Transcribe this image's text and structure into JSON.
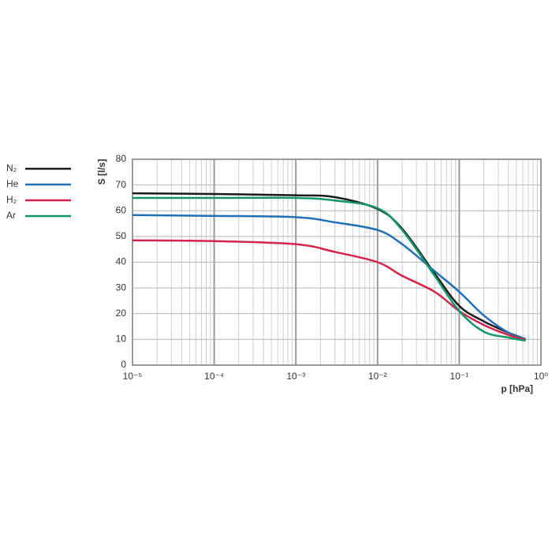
{
  "chart_data": {
    "type": "line",
    "xlabel": "p [hPa]",
    "ylabel": "S [l/s]",
    "x": [
      1e-05,
      0.0001,
      0.001,
      0.003,
      0.01,
      0.02,
      0.05,
      0.1,
      0.2,
      0.4,
      0.65
    ],
    "series": [
      {
        "name": "N₂",
        "color": "#1a1a1a",
        "values": [
          66.8,
          66.5,
          66,
          65.3,
          60.7,
          53,
          35.6,
          23,
          17,
          12.6,
          10.1
        ]
      },
      {
        "name": "He",
        "color": "#1f6fb5",
        "values": [
          58.3,
          58,
          57.5,
          55.5,
          52.5,
          47,
          36.5,
          28.5,
          19.3,
          12.6,
          10.1
        ]
      },
      {
        "name": "H₂",
        "color": "#d6234a",
        "values": [
          48.5,
          48.2,
          47,
          44,
          40,
          34.7,
          28.5,
          21,
          15.6,
          11.7,
          9.8
        ]
      },
      {
        "name": "Ar",
        "color": "#12956a",
        "values": [
          65,
          65,
          65,
          64,
          61,
          52.5,
          34.7,
          21,
          13,
          10.7,
          9.5
        ]
      }
    ],
    "xlog": true,
    "xlim": [
      1e-05,
      1
    ],
    "xticks": [
      {
        "value": 1e-05,
        "label": "10⁻⁵"
      },
      {
        "value": 0.0001,
        "label": "10⁻⁴"
      },
      {
        "value": 0.001,
        "label": "10⁻³"
      },
      {
        "value": 0.01,
        "label": "10⁻²"
      },
      {
        "value": 0.1,
        "label": "10⁻¹"
      },
      {
        "value": 1,
        "label": "10⁰"
      }
    ],
    "ylim": [
      0,
      80
    ],
    "yticks": [
      0,
      10,
      20,
      30,
      40,
      50,
      60,
      70,
      80
    ],
    "grid": true,
    "legend": "left"
  }
}
